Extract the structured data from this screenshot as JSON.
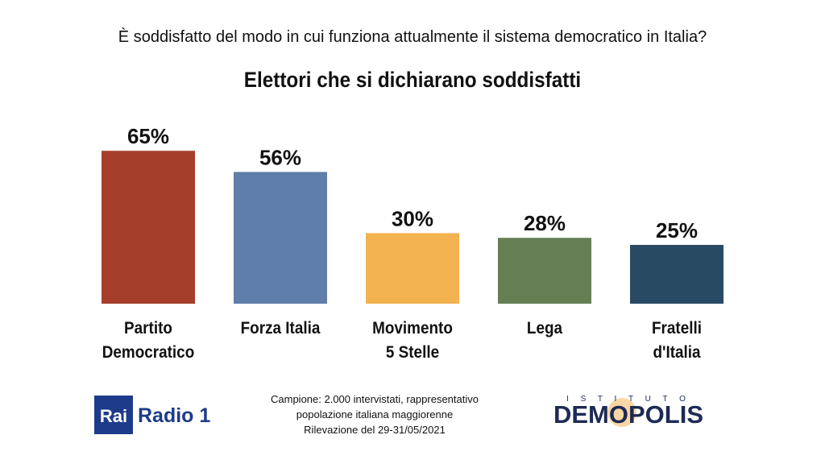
{
  "chart_data": {
    "type": "bar",
    "subtitle": "È soddisfatto del modo in cui funziona attualmente il sistema democratico in Italia?",
    "title": "Elettori che si dichiarano soddisfatti",
    "categories": [
      "Partito\nDemocratico",
      "Forza Italia",
      "Movimento\n5 Stelle",
      "Lega",
      "Fratelli\nd'Italia"
    ],
    "values": [
      65,
      56,
      30,
      28,
      25
    ],
    "value_labels": [
      "65%",
      "56%",
      "30%",
      "28%",
      "25%"
    ],
    "colors": [
      "#a63e2c",
      "#5f7ea9",
      "#f2b24f",
      "#667f52",
      "#284b63"
    ]
  },
  "footer": {
    "note": [
      "Campione: 2.000 intervistati, rappresentativo",
      "popolazione italiana maggiorenne",
      "Rilevazione del 29-31/05/2021"
    ],
    "logo_left": {
      "box": "Rai",
      "text": "Radio 1"
    },
    "logo_right": {
      "top": "I S T I T U T O",
      "name": "DEMOPOLIS"
    }
  }
}
